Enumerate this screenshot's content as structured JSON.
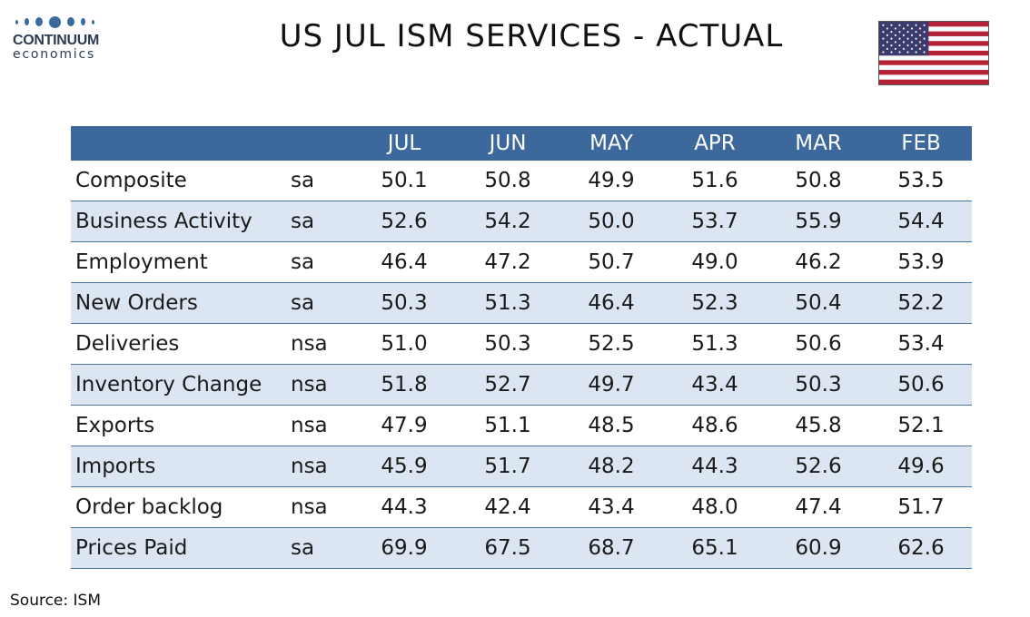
{
  "logo": {
    "name": "CONTINUUM",
    "sub": "economics"
  },
  "title": "US JUL ISM SERVICES - ACTUAL",
  "flag_icon": "us-flag-icon",
  "colors": {
    "header_bg": "#3c689b",
    "alt_row_bg": "#dce6f2",
    "row_border": "#4a76a8",
    "flag_red": "#b22234",
    "flag_blue": "#3c3b6e"
  },
  "chart_data": {
    "type": "table",
    "columns": [
      "JUL",
      "JUN",
      "MAY",
      "APR",
      "MAR",
      "FEB"
    ],
    "rows": [
      {
        "label": "Composite",
        "adj": "sa",
        "values": [
          "50.1",
          "50.8",
          "49.9",
          "51.6",
          "50.8",
          "53.5"
        ]
      },
      {
        "label": "Business Activity",
        "adj": "sa",
        "values": [
          "52.6",
          "54.2",
          "50.0",
          "53.7",
          "55.9",
          "54.4"
        ]
      },
      {
        "label": "Employment",
        "adj": "sa",
        "values": [
          "46.4",
          "47.2",
          "50.7",
          "49.0",
          "46.2",
          "53.9"
        ]
      },
      {
        "label": "New Orders",
        "adj": "sa",
        "values": [
          "50.3",
          "51.3",
          "46.4",
          "52.3",
          "50.4",
          "52.2"
        ]
      },
      {
        "label": "Deliveries",
        "adj": "nsa",
        "values": [
          "51.0",
          "50.3",
          "52.5",
          "51.3",
          "50.6",
          "53.4"
        ]
      },
      {
        "label": "Inventory Change",
        "adj": "nsa",
        "values": [
          "51.8",
          "52.7",
          "49.7",
          "43.4",
          "50.3",
          "50.6"
        ]
      },
      {
        "label": "Exports",
        "adj": "nsa",
        "values": [
          "47.9",
          "51.1",
          "48.5",
          "48.6",
          "45.8",
          "52.1"
        ]
      },
      {
        "label": "Imports",
        "adj": "nsa",
        "values": [
          "45.9",
          "51.7",
          "48.2",
          "44.3",
          "52.6",
          "49.6"
        ]
      },
      {
        "label": "Order backlog",
        "adj": "nsa",
        "values": [
          "44.3",
          "42.4",
          "43.4",
          "48.0",
          "47.4",
          "51.7"
        ]
      },
      {
        "label": "Prices Paid",
        "adj": "sa",
        "values": [
          "69.9",
          "67.5",
          "68.7",
          "65.1",
          "60.9",
          "62.6"
        ]
      }
    ]
  },
  "source": "Source: ISM"
}
